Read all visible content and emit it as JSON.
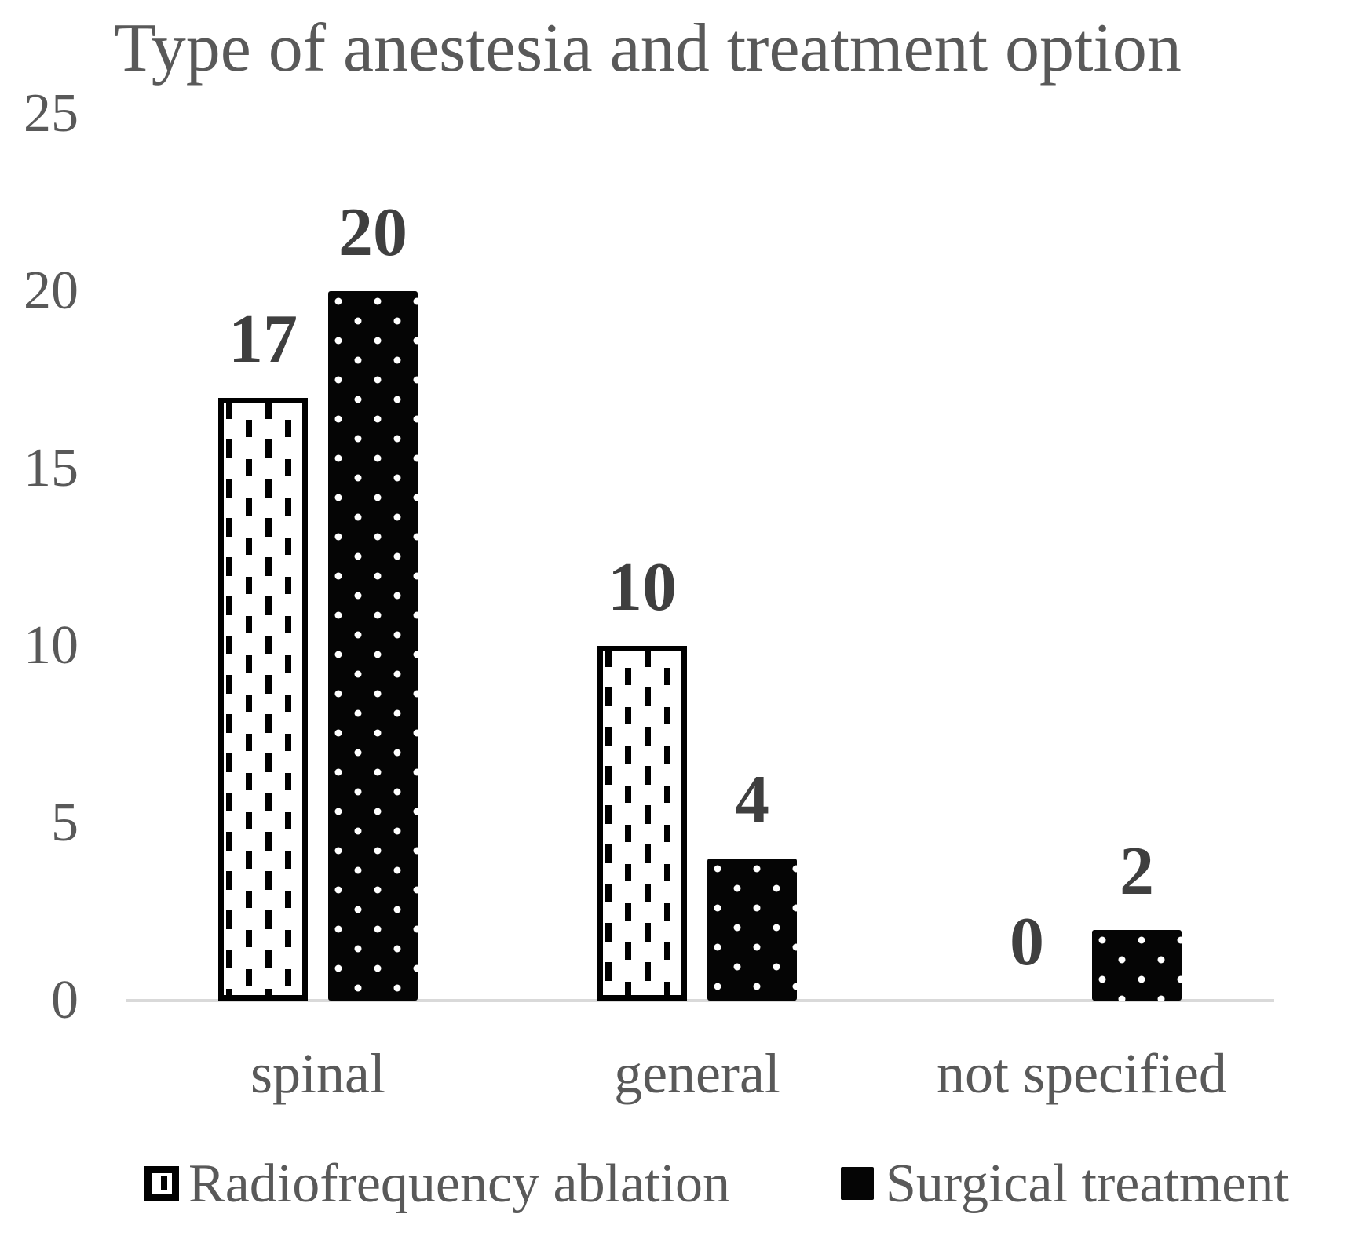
{
  "title": "Type of anestesia and treatment option",
  "chart_data": {
    "type": "bar",
    "categories": [
      "spinal",
      "general",
      "not specified"
    ],
    "series": [
      {
        "name": "Radiofrequency ablation",
        "pattern": "white-dashed",
        "values": [
          17,
          10,
          0
        ]
      },
      {
        "name": "Surgical treatment",
        "pattern": "black-dotted",
        "values": [
          20,
          4,
          2
        ]
      }
    ],
    "xlabel": "",
    "ylabel": "",
    "ylim": [
      0,
      25
    ],
    "yticks": [
      0,
      5,
      10,
      15,
      20,
      25
    ],
    "grid": false,
    "legend_position": "bottom",
    "data_labels_shown": true,
    "data_labels": [
      [
        17,
        10,
        0
      ],
      [
        20,
        4,
        2
      ]
    ]
  },
  "colors": {
    "title_text": "#595959",
    "axis_text": "#595959",
    "data_label_text": "#3f3f3f",
    "bar_fill": "#000000",
    "bar_pattern_contrast": "#ffffff",
    "axis_line": "#d9d9d9",
    "background": "#ffffff"
  },
  "legend": {
    "items": [
      {
        "label": "Radiofrequency ablation",
        "swatch": "white-dashed-outline"
      },
      {
        "label": "Surgical treatment",
        "swatch": "solid-black"
      }
    ]
  }
}
